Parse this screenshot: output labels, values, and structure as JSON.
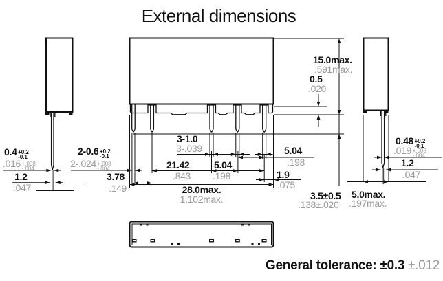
{
  "title": "External dimensions",
  "footer": {
    "label": "General tolerance:",
    "metric_tolerance": "±0.3",
    "inch_tolerance": "±.012"
  },
  "colors": {
    "ink": "#111111",
    "inch_gray": "#9a9a9a"
  },
  "dims": {
    "left_pin_thickness": {
      "metric": "0.4",
      "metric_tol_plus": "+0.2",
      "metric_tol_minus": "-0.1",
      "inch": ".016",
      "inch_tol_plus": "+.008",
      "inch_tol_minus": "-.004"
    },
    "left_pin_width": {
      "metric": "1.2",
      "inch": ".047"
    },
    "small_pins_width": {
      "metric": "2-0.6",
      "metric_tol_plus": "+0.2",
      "metric_tol_minus": "-0.1",
      "inch": "2-.024",
      "inch_tol_plus": "+.008",
      "inch_tol_minus": "-.004"
    },
    "pin1_pin2_pitch": {
      "metric": "3.78",
      "inch": ".149"
    },
    "large_pins_width": {
      "metric": "3-1.0",
      "inch": "3-.039"
    },
    "pin2_pin5_span": {
      "metric": "21.42",
      "inch": ".843"
    },
    "pin3_pin4_pitch": {
      "metric": "5.04",
      "inch": ".198"
    },
    "pin4_pin5_pitch": {
      "metric": "5.04",
      "inch": ".198"
    },
    "pin5_to_edge": {
      "metric": "1.9",
      "inch": ".075"
    },
    "case_width": {
      "metric": "28.0max.",
      "inch": "1.102max."
    },
    "case_height": {
      "metric": "15.0max.",
      "inch": ".591max."
    },
    "standoff_height": {
      "metric": "0.5",
      "inch": ".020"
    },
    "pin_length": {
      "metric": "3.5±0.5",
      "inch": ".138±.020"
    },
    "case_depth": {
      "metric": "5.0max.",
      "inch": ".197max."
    },
    "right_pin_thickness": {
      "metric": "0.48",
      "metric_tol_plus": "+0.2",
      "metric_tol_minus": "-0.1",
      "inch": ".019",
      "inch_tol_plus": "+.008",
      "inch_tol_minus": "-.004"
    },
    "right_pin_width": {
      "metric": "1.2",
      "inch": ".047"
    }
  }
}
